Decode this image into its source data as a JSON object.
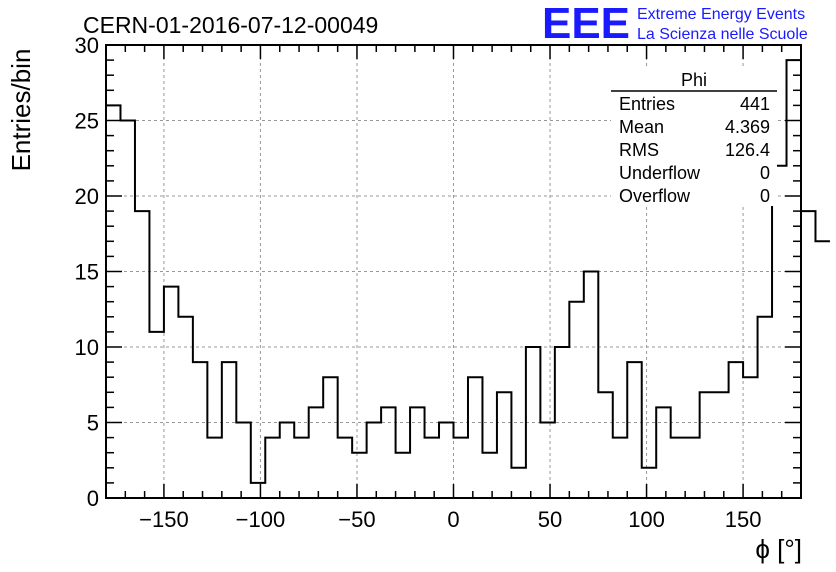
{
  "logo": {
    "letters": "EEE",
    "line1": "Extreme Energy Events",
    "line2": "La Scienza nelle Scuole",
    "color": "#1a1aff"
  },
  "chart_data": {
    "type": "bar",
    "title": "CERN-01-2016-07-12-00049",
    "xlabel": "ϕ [°]",
    "ylabel": "Entries/bin",
    "xlim": [
      -180,
      180
    ],
    "ylim": [
      0,
      30
    ],
    "grid": true,
    "bin_width": 7.5,
    "x_ticks": [
      -150,
      -100,
      -50,
      0,
      50,
      100,
      150
    ],
    "x_tick_labels": [
      "−150",
      "−100",
      "−50",
      "0",
      "50",
      "100",
      "150"
    ],
    "y_ticks": [
      0,
      5,
      10,
      15,
      20,
      25,
      30
    ],
    "y_tick_labels": [
      "0",
      "5",
      "10",
      "15",
      "20",
      "25",
      "30"
    ],
    "values": [
      26,
      25,
      19,
      11,
      14,
      12,
      9,
      4,
      9,
      5,
      1,
      4,
      5,
      4,
      6,
      8,
      4,
      3,
      5,
      6,
      3,
      6,
      4,
      5,
      4,
      8,
      3,
      7,
      2,
      10,
      5,
      10,
      13,
      15,
      7,
      4,
      9,
      2,
      6,
      4,
      4,
      7,
      7,
      9,
      8,
      12,
      22,
      29,
      19,
      17
    ],
    "stats_box": {
      "title": "Phi",
      "rows": [
        {
          "label": "Entries",
          "value": "441"
        },
        {
          "label": "Mean",
          "value": "4.369"
        },
        {
          "label": "RMS",
          "value": "126.4"
        },
        {
          "label": "Underflow",
          "value": "0"
        },
        {
          "label": "Overflow",
          "value": "0"
        }
      ],
      "placement": "top-right"
    }
  }
}
